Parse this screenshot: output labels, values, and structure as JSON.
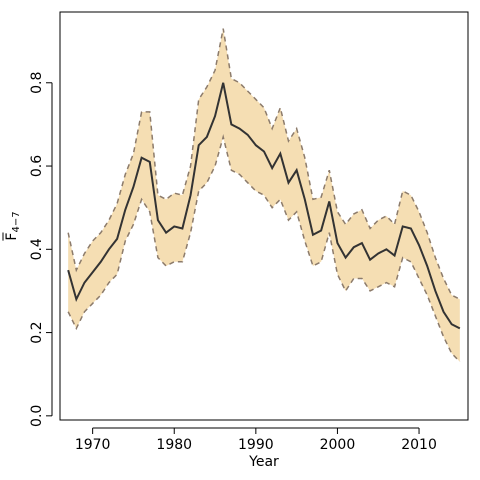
{
  "chart_data": {
    "type": "line",
    "title": "",
    "xlabel": "Year",
    "ylabel": "F",
    "ylabel_subscript": "4−7",
    "xlim": [
      1966,
      2016
    ],
    "ylim": [
      -0.01,
      0.97
    ],
    "x_ticks": [
      1970,
      1980,
      1990,
      2000,
      2010
    ],
    "x_tick_labels": [
      "1970",
      "1980",
      "1990",
      "2000",
      "2010"
    ],
    "y_ticks": [
      0.0,
      0.2,
      0.4,
      0.6,
      0.8
    ],
    "y_tick_labels": [
      "0.0",
      "0.2",
      "0.4",
      "0.6",
      "0.8"
    ],
    "grid": false,
    "legend": "none",
    "colors": {
      "band_fill": "#f5deb3",
      "band_edge": "#8c7b6b",
      "line": "#333333"
    },
    "x": [
      1967,
      1968,
      1969,
      1970,
      1971,
      1972,
      1973,
      1974,
      1975,
      1976,
      1977,
      1978,
      1979,
      1980,
      1981,
      1982,
      1983,
      1984,
      1985,
      1986,
      1987,
      1988,
      1989,
      1990,
      1991,
      1992,
      1993,
      1994,
      1995,
      1996,
      1997,
      1998,
      1999,
      2000,
      2001,
      2002,
      2003,
      2004,
      2005,
      2006,
      2007,
      2008,
      2009,
      2010,
      2011,
      2012,
      2013,
      2014,
      2015
    ],
    "mean": [
      0.35,
      0.28,
      0.32,
      0.345,
      0.37,
      0.4,
      0.425,
      0.495,
      0.55,
      0.62,
      0.61,
      0.47,
      0.44,
      0.455,
      0.45,
      0.53,
      0.65,
      0.67,
      0.72,
      0.8,
      0.7,
      0.69,
      0.675,
      0.65,
      0.635,
      0.595,
      0.63,
      0.56,
      0.59,
      0.52,
      0.435,
      0.445,
      0.515,
      0.415,
      0.38,
      0.405,
      0.415,
      0.375,
      0.39,
      0.4,
      0.385,
      0.455,
      0.45,
      0.41,
      0.36,
      0.3,
      0.25,
      0.22,
      0.21
    ],
    "upper": [
      0.44,
      0.35,
      0.39,
      0.42,
      0.44,
      0.47,
      0.51,
      0.58,
      0.63,
      0.73,
      0.73,
      0.53,
      0.52,
      0.535,
      0.53,
      0.6,
      0.76,
      0.79,
      0.83,
      0.93,
      0.81,
      0.8,
      0.78,
      0.76,
      0.74,
      0.69,
      0.74,
      0.66,
      0.69,
      0.62,
      0.52,
      0.525,
      0.59,
      0.49,
      0.46,
      0.485,
      0.495,
      0.45,
      0.47,
      0.48,
      0.46,
      0.54,
      0.53,
      0.49,
      0.44,
      0.38,
      0.33,
      0.29,
      0.28
    ],
    "lower": [
      0.25,
      0.21,
      0.25,
      0.27,
      0.29,
      0.32,
      0.34,
      0.42,
      0.46,
      0.52,
      0.49,
      0.38,
      0.36,
      0.37,
      0.37,
      0.44,
      0.54,
      0.56,
      0.6,
      0.67,
      0.59,
      0.58,
      0.56,
      0.54,
      0.53,
      0.5,
      0.52,
      0.47,
      0.49,
      0.42,
      0.36,
      0.37,
      0.44,
      0.34,
      0.3,
      0.33,
      0.33,
      0.3,
      0.31,
      0.32,
      0.31,
      0.38,
      0.37,
      0.33,
      0.29,
      0.24,
      0.19,
      0.15,
      0.13
    ]
  }
}
